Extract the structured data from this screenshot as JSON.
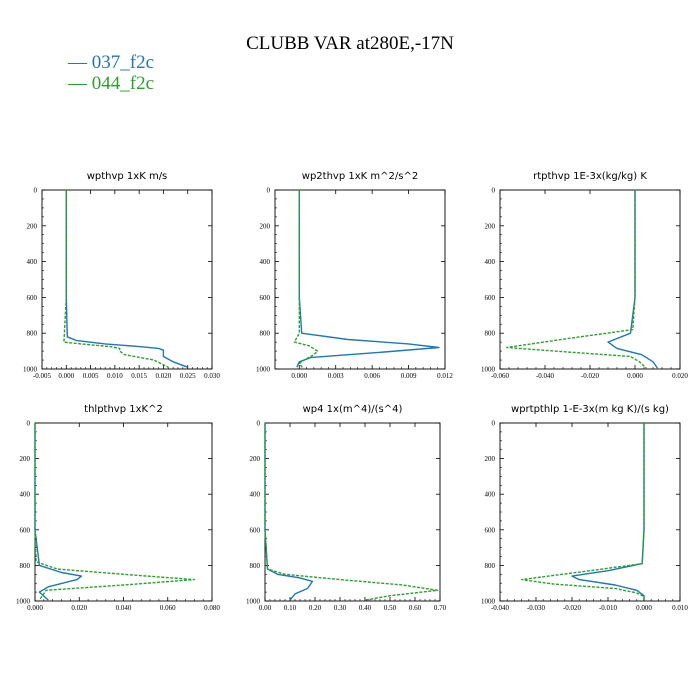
{
  "figure": {
    "title": "CLUBB VAR at280E,-17N"
  },
  "legend": [
    {
      "label": "— 037_f2c",
      "color": "#1f77b4",
      "dash": false
    },
    {
      "label": "— 044_f2c",
      "color": "#2ca02c",
      "dash": true
    }
  ],
  "chart_data": [
    {
      "type": "line",
      "title": "wpthvp   1xK  m/s",
      "xlim": [
        -0.005,
        0.03
      ],
      "xticks": [
        "-0.005",
        "0.000",
        "0.005",
        "0.010",
        "0.015",
        "0.020",
        "0.025",
        "0.030"
      ],
      "xtick_values": [
        -0.005,
        0.0,
        0.005,
        0.01,
        0.015,
        0.02,
        0.025,
        0.03
      ],
      "ylim": [
        0,
        1000
      ],
      "yticks": [
        "0",
        "200",
        "400",
        "600",
        "800",
        "1000"
      ],
      "ytick_values": [
        0,
        200,
        400,
        600,
        800,
        1000
      ],
      "series": [
        {
          "color": "#1f77b4",
          "dash": false,
          "x": [
            0.0,
            0.0,
            0.0,
            0.0,
            0.0002,
            0.002,
            0.008,
            0.015,
            0.019,
            0.02,
            0.02,
            0.022,
            0.025
          ],
          "y": [
            0,
            200,
            400,
            600,
            820,
            840,
            860,
            875,
            885,
            895,
            930,
            960,
            990
          ]
        },
        {
          "color": "#2ca02c",
          "dash": true,
          "x": [
            0.0,
            0.0,
            0.0,
            0.0,
            -0.0005,
            0.003,
            0.009,
            0.01,
            0.011,
            0.011,
            0.012,
            0.018,
            0.021
          ],
          "y": [
            0,
            200,
            400,
            600,
            850,
            860,
            875,
            880,
            885,
            900,
            920,
            950,
            990
          ]
        }
      ]
    },
    {
      "type": "line",
      "title": "wp2thvp   1xK  m^2/s^2",
      "xlim": [
        -0.002,
        0.012
      ],
      "xticks": [
        "0.000",
        "0.003",
        "0.006",
        "0.009",
        "0.012"
      ],
      "xtick_values": [
        0.0,
        0.003,
        0.006,
        0.009,
        0.012
      ],
      "ylim": [
        0,
        1000
      ],
      "yticks": [
        "0",
        "200",
        "400",
        "600",
        "800",
        "1000"
      ],
      "ytick_values": [
        0,
        200,
        400,
        600,
        800,
        1000
      ],
      "series": [
        {
          "color": "#1f77b4",
          "dash": false,
          "x": [
            0.0,
            0.0,
            0.0,
            0.0,
            0.0002,
            0.004,
            0.009,
            0.0115,
            0.007,
            0.001,
            0.0,
            -0.0002
          ],
          "y": [
            0,
            200,
            400,
            600,
            800,
            835,
            860,
            880,
            905,
            935,
            960,
            990
          ]
        },
        {
          "color": "#2ca02c",
          "dash": true,
          "x": [
            0.0,
            0.0,
            0.0,
            0.0,
            0.0,
            -0.0004,
            0.0008,
            0.0015,
            0.0012,
            0.0004,
            0.0,
            0.0003
          ],
          "y": [
            0,
            200,
            400,
            600,
            800,
            850,
            870,
            900,
            920,
            950,
            970,
            995
          ]
        }
      ]
    },
    {
      "type": "line",
      "title": "rtpthvp   1E-3x(kg/kg) K",
      "xlim": [
        -0.06,
        0.02
      ],
      "xticks": [
        "-0.060",
        "-0.040",
        "-0.020",
        "0.000",
        "0.020"
      ],
      "xtick_values": [
        -0.06,
        -0.04,
        -0.02,
        0.0,
        0.02
      ],
      "ylim": [
        0,
        1000
      ],
      "yticks": [
        "0",
        "200",
        "400",
        "600",
        "800",
        "1000"
      ],
      "ytick_values": [
        0,
        200,
        400,
        600,
        800,
        1000
      ],
      "series": [
        {
          "color": "#1f77b4",
          "dash": false,
          "x": [
            0.0,
            0.0,
            0.0,
            0.0,
            -0.002,
            -0.012,
            -0.008,
            0.003,
            0.008,
            0.01
          ],
          "y": [
            0,
            200,
            400,
            600,
            800,
            850,
            885,
            920,
            960,
            995
          ]
        },
        {
          "color": "#2ca02c",
          "dash": true,
          "x": [
            0.0,
            0.0,
            0.0,
            0.0,
            -0.001,
            -0.03,
            -0.057,
            -0.03,
            -0.002,
            0.002,
            0.005
          ],
          "y": [
            0,
            200,
            400,
            600,
            780,
            830,
            880,
            905,
            930,
            960,
            995
          ]
        }
      ]
    },
    {
      "type": "line",
      "title": "thlpthvp   1xK^2",
      "xlim": [
        0.0,
        0.08
      ],
      "xticks": [
        "0.000",
        "0.020",
        "0.040",
        "0.060",
        "0.080"
      ],
      "xtick_values": [
        0.0,
        0.02,
        0.04,
        0.06,
        0.08
      ],
      "ylim": [
        0,
        1000
      ],
      "yticks": [
        "0",
        "200",
        "400",
        "600",
        "800",
        "1000"
      ],
      "ytick_values": [
        0,
        200,
        400,
        600,
        800,
        1000
      ],
      "series": [
        {
          "color": "#1f77b4",
          "dash": false,
          "x": [
            0.0,
            0.0,
            0.0,
            0.0,
            0.002,
            0.012,
            0.021,
            0.019,
            0.006,
            0.002,
            0.006
          ],
          "y": [
            0,
            200,
            400,
            600,
            800,
            840,
            860,
            880,
            920,
            950,
            995
          ]
        },
        {
          "color": "#2ca02c",
          "dash": true,
          "x": [
            0.0,
            0.0,
            0.0,
            0.0,
            0.0005,
            0.01,
            0.04,
            0.072,
            0.04,
            0.005,
            0.002
          ],
          "y": [
            0,
            200,
            400,
            600,
            780,
            820,
            850,
            880,
            910,
            940,
            995
          ]
        }
      ]
    },
    {
      "type": "line",
      "title": "wp4   1x(m^4)/(s^4)",
      "xlim": [
        0.0,
        0.7
      ],
      "xticks": [
        "0.00",
        "0.10",
        "0.20",
        "0.30",
        "0.40",
        "0.50",
        "0.60",
        "0.70"
      ],
      "xtick_values": [
        0.0,
        0.1,
        0.2,
        0.3,
        0.4,
        0.5,
        0.6,
        0.7
      ],
      "ylim": [
        0,
        1000
      ],
      "yticks": [
        "0",
        "200",
        "400",
        "600",
        "800",
        "1000"
      ],
      "ytick_values": [
        0,
        200,
        400,
        600,
        800,
        1000
      ],
      "series": [
        {
          "color": "#1f77b4",
          "dash": false,
          "x": [
            0.0,
            0.0,
            0.0,
            0.0,
            0.01,
            0.05,
            0.14,
            0.19,
            0.17,
            0.12,
            0.1
          ],
          "y": [
            0,
            200,
            400,
            600,
            820,
            850,
            870,
            890,
            930,
            960,
            995
          ]
        },
        {
          "color": "#2ca02c",
          "dash": true,
          "x": [
            0.0,
            0.0,
            0.0,
            0.0,
            0.01,
            0.08,
            0.3,
            0.55,
            0.69,
            0.5,
            0.4
          ],
          "y": [
            0,
            200,
            400,
            600,
            820,
            850,
            880,
            910,
            940,
            970,
            995
          ]
        }
      ]
    },
    {
      "type": "line",
      "title": "wprtpthlp   1-E-3x(m kg K)/(s kg)",
      "xlim": [
        -0.04,
        0.01
      ],
      "xticks": [
        "-0.040",
        "-0.030",
        "-0.020",
        "-0.010",
        "0.000",
        "0.010"
      ],
      "xtick_values": [
        -0.04,
        -0.03,
        -0.02,
        -0.01,
        0.0,
        0.01
      ],
      "ylim": [
        0,
        1000
      ],
      "yticks": [
        "0",
        "200",
        "400",
        "600",
        "800",
        "1000"
      ],
      "ytick_values": [
        0,
        200,
        400,
        600,
        800,
        1000
      ],
      "series": [
        {
          "color": "#1f77b4",
          "dash": false,
          "x": [
            0.0,
            0.0,
            0.0,
            0.0,
            -0.0005,
            -0.01,
            -0.02,
            -0.018,
            -0.008,
            -0.002,
            0.0,
            0.0
          ],
          "y": [
            0,
            200,
            400,
            600,
            790,
            830,
            860,
            880,
            910,
            940,
            970,
            995
          ]
        },
        {
          "color": "#2ca02c",
          "dash": true,
          "x": [
            0.0,
            0.0,
            0.0,
            0.0,
            -0.0005,
            -0.015,
            -0.034,
            -0.025,
            -0.008,
            -0.002,
            0.0,
            0.0
          ],
          "y": [
            0,
            200,
            400,
            600,
            790,
            830,
            880,
            905,
            930,
            955,
            975,
            995
          ]
        }
      ]
    }
  ]
}
